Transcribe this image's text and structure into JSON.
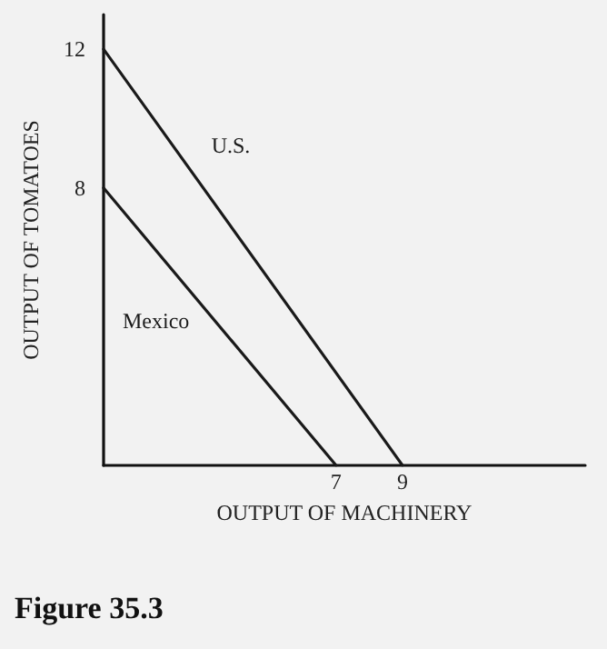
{
  "chart_data": {
    "type": "line",
    "title": "Figure 35.3",
    "xlabel": "OUTPUT OF MACHINERY",
    "ylabel": "OUTPUT OF TOMATOES",
    "series": [
      {
        "name": "U.S.",
        "color": "#1a1a1a",
        "x": [
          0,
          9
        ],
        "values": [
          12,
          0
        ]
      },
      {
        "name": "Mexico",
        "color": "#1a1a1a",
        "x": [
          0,
          7
        ],
        "values": [
          8,
          0
        ]
      }
    ],
    "xlim": [
      0,
      14.5
    ],
    "xticks": [
      7,
      9
    ],
    "ylim": [
      0,
      13
    ],
    "yticks": [
      8,
      12
    ],
    "grid": false,
    "marker": "none",
    "line_style": "solid"
  }
}
